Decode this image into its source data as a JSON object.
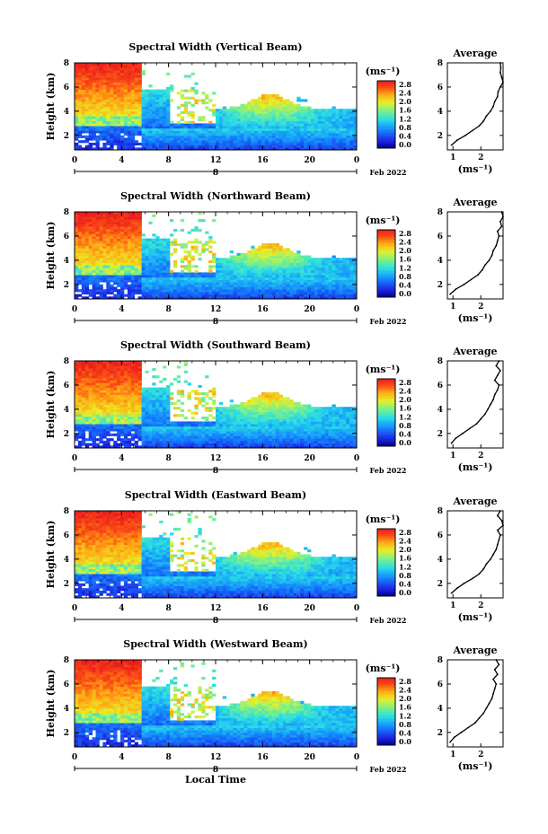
{
  "figure": {
    "xlabel": "Local Time",
    "colorbar_unit": "(ms⁻¹)",
    "avg_title": "Average",
    "avg_xlabel": "(ms⁻¹)",
    "date_label": "Feb 2022"
  },
  "chart_data": [
    {
      "type": "heatmap",
      "title": "Spectral Width (Vertical Beam)",
      "ylabel": "Height (km)",
      "xlim": [
        0,
        24
      ],
      "ylim": [
        0.8,
        8
      ],
      "x_ticks": [
        "0",
        "4",
        "8",
        "12",
        "16",
        "20",
        "0"
      ],
      "y_ticks": [
        "2",
        "4",
        "6",
        "8"
      ],
      "day_ticks": [
        "8"
      ],
      "colorbar": {
        "range": [
          0,
          2.8
        ],
        "ticks": [
          "2.8",
          "2.4",
          "2.0",
          "1.6",
          "1.2",
          "0.8",
          "0.4",
          "0.0"
        ]
      },
      "average_profile": {
        "xlim": [
          0.8,
          2.8
        ],
        "x_ticks": [
          "1",
          "2"
        ],
        "y_ticks": [
          "2",
          "4",
          "6",
          "8"
        ],
        "height_km": [
          1.2,
          1.6,
          2.0,
          2.4,
          2.8,
          3.2,
          3.6,
          4.0,
          4.4,
          4.8,
          5.2,
          5.6,
          6.0,
          6.4,
          6.8,
          7.2,
          7.6,
          8.0
        ],
        "width": [
          0.95,
          1.15,
          1.45,
          1.7,
          1.95,
          2.1,
          2.2,
          2.35,
          2.45,
          2.5,
          2.6,
          2.62,
          2.7,
          2.8,
          2.75,
          2.7,
          2.72,
          2.7
        ]
      }
    },
    {
      "type": "heatmap",
      "title": "Spectral Width (Northward Beam)",
      "ylabel": "Height (km)",
      "xlim": [
        0,
        24
      ],
      "ylim": [
        0.8,
        8
      ],
      "x_ticks": [
        "0",
        "4",
        "8",
        "12",
        "16",
        "20",
        "0"
      ],
      "y_ticks": [
        "2",
        "4",
        "6",
        "8"
      ],
      "day_ticks": [
        "8"
      ],
      "colorbar": {
        "range": [
          0,
          2.8
        ],
        "ticks": [
          "2.8",
          "2.4",
          "2.0",
          "1.6",
          "1.2",
          "0.8",
          "0.4",
          "0.0"
        ]
      },
      "average_profile": {
        "xlim": [
          0.8,
          2.8
        ],
        "x_ticks": [
          "1",
          "2"
        ],
        "y_ticks": [
          "2",
          "4",
          "6",
          "8"
        ],
        "height_km": [
          1.2,
          1.6,
          2.0,
          2.4,
          2.8,
          3.2,
          3.6,
          4.0,
          4.4,
          4.8,
          5.2,
          5.6,
          6.0,
          6.4,
          6.8,
          7.2,
          7.6,
          8.0
        ],
        "width": [
          0.9,
          1.1,
          1.4,
          1.65,
          1.9,
          2.05,
          2.15,
          2.3,
          2.4,
          2.45,
          2.55,
          2.6,
          2.65,
          2.6,
          2.75,
          2.7,
          2.8,
          2.75
        ]
      }
    },
    {
      "type": "heatmap",
      "title": "Spectral Width (Southward Beam)",
      "ylabel": "Height (km)",
      "xlim": [
        0,
        24
      ],
      "ylim": [
        0.8,
        8
      ],
      "x_ticks": [
        "0",
        "4",
        "8",
        "12",
        "16",
        "20",
        "0"
      ],
      "y_ticks": [
        "2",
        "4",
        "6",
        "8"
      ],
      "day_ticks": [
        "8"
      ],
      "colorbar": {
        "range": [
          0,
          2.8
        ],
        "ticks": [
          "2.8",
          "2.4",
          "2.0",
          "1.6",
          "1.2",
          "0.8",
          "0.4",
          "0.0"
        ]
      },
      "average_profile": {
        "xlim": [
          0.8,
          2.8
        ],
        "x_ticks": [
          "1",
          "2"
        ],
        "y_ticks": [
          "2",
          "4",
          "6",
          "8"
        ],
        "height_km": [
          1.2,
          1.6,
          2.0,
          2.4,
          2.8,
          3.2,
          3.6,
          4.0,
          4.4,
          4.8,
          5.2,
          5.6,
          6.0,
          6.4,
          6.8,
          7.2,
          7.6,
          8.0
        ],
        "width": [
          0.95,
          1.1,
          1.35,
          1.6,
          1.85,
          2.0,
          2.15,
          2.25,
          2.35,
          2.45,
          2.5,
          2.6,
          2.65,
          2.5,
          2.6,
          2.7,
          2.55,
          2.65
        ]
      }
    },
    {
      "type": "heatmap",
      "title": "Spectral Width (Eastward Beam)",
      "ylabel": "Height (km)",
      "xlim": [
        0,
        24
      ],
      "ylim": [
        0.8,
        8
      ],
      "x_ticks": [
        "0",
        "4",
        "8",
        "12",
        "16",
        "20",
        "0"
      ],
      "y_ticks": [
        "2",
        "4",
        "6",
        "8"
      ],
      "day_ticks": [
        "8"
      ],
      "colorbar": {
        "range": [
          0,
          2.8
        ],
        "ticks": [
          "2.8",
          "2.4",
          "2.0",
          "1.6",
          "1.2",
          "0.8",
          "0.4",
          "0.0"
        ]
      },
      "average_profile": {
        "xlim": [
          0.8,
          2.8
        ],
        "x_ticks": [
          "1",
          "2"
        ],
        "y_ticks": [
          "2",
          "4",
          "6",
          "8"
        ],
        "height_km": [
          1.2,
          1.6,
          2.0,
          2.4,
          2.8,
          3.2,
          3.6,
          4.0,
          4.4,
          4.8,
          5.2,
          5.6,
          6.0,
          6.4,
          6.8,
          7.2,
          7.6,
          8.0
        ],
        "width": [
          0.95,
          1.15,
          1.4,
          1.7,
          1.95,
          2.1,
          2.2,
          2.35,
          2.45,
          2.55,
          2.6,
          2.65,
          2.7,
          2.6,
          2.8,
          2.75,
          2.6,
          2.7
        ]
      }
    },
    {
      "type": "heatmap",
      "title": "Spectral Width (Westward Beam)",
      "ylabel": "Height (km)",
      "xlim": [
        0,
        24
      ],
      "ylim": [
        0.8,
        8
      ],
      "x_ticks": [
        "0",
        "4",
        "8",
        "12",
        "16",
        "20",
        "0"
      ],
      "y_ticks": [
        "2",
        "4",
        "6",
        "8"
      ],
      "day_ticks": [
        "8"
      ],
      "colorbar": {
        "range": [
          0,
          2.8
        ],
        "ticks": [
          "2.8",
          "2.4",
          "2.0",
          "1.6",
          "1.2",
          "0.8",
          "0.4",
          "0.0"
        ]
      },
      "average_profile": {
        "xlim": [
          0.8,
          2.8
        ],
        "x_ticks": [
          "1",
          "2"
        ],
        "y_ticks": [
          "2",
          "4",
          "6",
          "8"
        ],
        "height_km": [
          1.2,
          1.6,
          2.0,
          2.4,
          2.8,
          3.2,
          3.6,
          4.0,
          4.4,
          4.8,
          5.2,
          5.6,
          6.0,
          6.4,
          6.8,
          7.2,
          7.6,
          8.0
        ],
        "width": [
          0.9,
          1.05,
          1.3,
          1.55,
          1.8,
          1.95,
          2.1,
          2.2,
          2.3,
          2.4,
          2.45,
          2.5,
          2.55,
          2.45,
          2.6,
          2.5,
          2.65,
          2.55
        ]
      }
    }
  ]
}
